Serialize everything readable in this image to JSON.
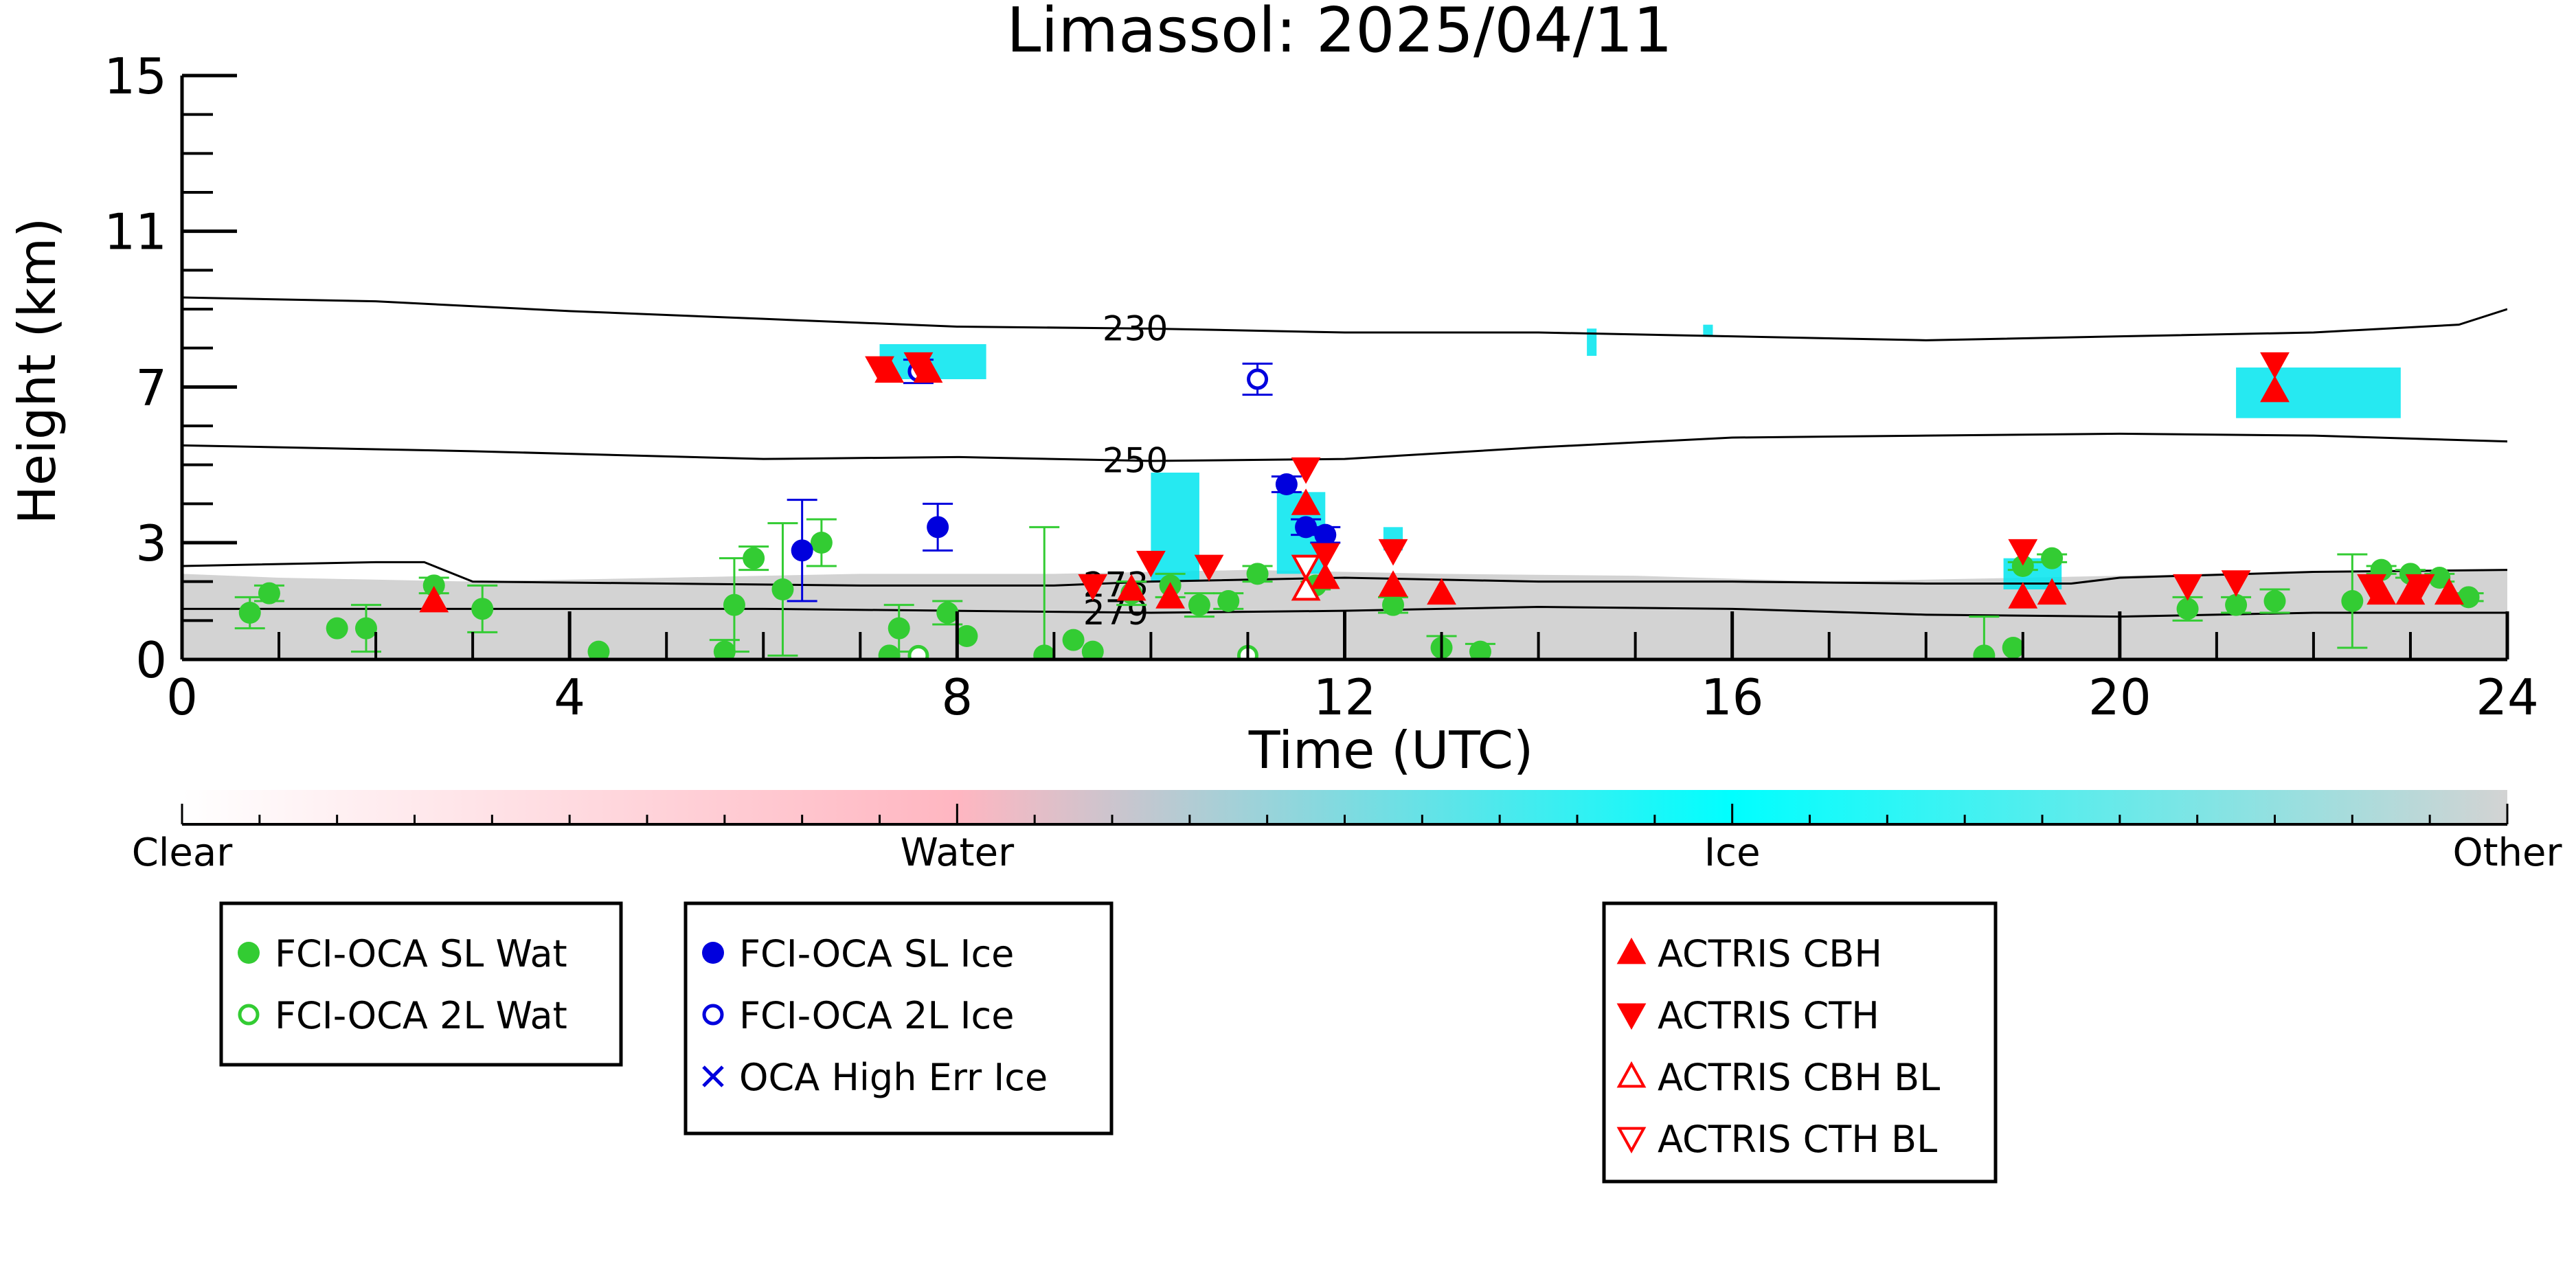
{
  "chart_data": {
    "type": "scatter",
    "title": "Limassol: 2025/04/11",
    "xlabel": "Time (UTC)",
    "ylabel": "Height (km)",
    "xlim": [
      0,
      24
    ],
    "ylim": [
      0,
      15
    ],
    "x_ticks": [
      0,
      4,
      8,
      12,
      16,
      20,
      24
    ],
    "x_tick_labels": [
      "0",
      "4",
      "8",
      "12",
      "16",
      "20",
      "24"
    ],
    "y_ticks": [
      0,
      3,
      7,
      11,
      15
    ],
    "y_tick_labels": [
      "0",
      "3",
      "7",
      "11",
      "15"
    ],
    "grid": false,
    "isotherms": [
      {
        "label": "230",
        "label_x": 9.5,
        "points": [
          [
            0,
            9.3
          ],
          [
            2,
            9.2
          ],
          [
            4,
            8.95
          ],
          [
            6,
            8.75
          ],
          [
            8,
            8.55
          ],
          [
            10,
            8.5
          ],
          [
            12,
            8.4
          ],
          [
            14,
            8.4
          ],
          [
            16,
            8.3
          ],
          [
            18,
            8.2
          ],
          [
            20,
            8.3
          ],
          [
            22,
            8.4
          ],
          [
            23.5,
            8.6
          ],
          [
            24,
            9.0
          ]
        ]
      },
      {
        "label": "250",
        "label_x": 9.5,
        "points": [
          [
            0,
            5.5
          ],
          [
            3,
            5.35
          ],
          [
            6,
            5.15
          ],
          [
            8,
            5.2
          ],
          [
            10,
            5.1
          ],
          [
            12,
            5.15
          ],
          [
            14,
            5.45
          ],
          [
            16,
            5.7
          ],
          [
            18,
            5.75
          ],
          [
            20,
            5.8
          ],
          [
            22,
            5.75
          ],
          [
            24,
            5.6
          ]
        ]
      },
      {
        "label": "273",
        "label_x": 9.3,
        "points": [
          [
            0,
            2.4
          ],
          [
            2,
            2.5
          ],
          [
            2.5,
            2.5
          ],
          [
            3,
            2.0
          ],
          [
            5,
            1.95
          ],
          [
            7,
            1.9
          ],
          [
            9,
            1.9
          ],
          [
            10,
            2.0
          ],
          [
            12,
            2.1
          ],
          [
            14,
            2.0
          ],
          [
            16,
            2.0
          ],
          [
            18,
            1.95
          ],
          [
            19.5,
            1.95
          ],
          [
            20,
            2.1
          ],
          [
            22,
            2.25
          ],
          [
            24,
            2.3
          ]
        ]
      },
      {
        "label": "279",
        "label_x": 9.3,
        "points": [
          [
            0,
            1.3
          ],
          [
            2,
            1.3
          ],
          [
            4,
            1.3
          ],
          [
            6,
            1.3
          ],
          [
            8,
            1.25
          ],
          [
            10,
            1.2
          ],
          [
            12,
            1.25
          ],
          [
            14,
            1.35
          ],
          [
            16,
            1.3
          ],
          [
            18,
            1.15
          ],
          [
            20,
            1.1
          ],
          [
            22,
            1.2
          ],
          [
            24,
            1.2
          ]
        ]
      }
    ],
    "background_layer": {
      "description_class": "Other",
      "top_profile": [
        [
          0,
          2.2
        ],
        [
          1,
          2.1
        ],
        [
          3,
          2.0
        ],
        [
          5,
          2.1
        ],
        [
          7,
          2.2
        ],
        [
          9,
          2.2
        ],
        [
          11,
          2.3
        ],
        [
          13,
          2.2
        ],
        [
          15,
          2.15
        ],
        [
          17,
          2.0
        ],
        [
          19,
          2.1
        ],
        [
          21,
          2.2
        ],
        [
          23,
          2.3
        ],
        [
          24,
          2.3
        ]
      ]
    },
    "ice_features": [
      {
        "x": 7.2,
        "x2": 8.3,
        "y": 7.2,
        "y2": 8.1
      },
      {
        "x": 10.0,
        "x2": 10.5,
        "y": 2.0,
        "y2": 4.8
      },
      {
        "x": 11.3,
        "x2": 11.8,
        "y": 2.2,
        "y2": 4.3
      },
      {
        "x": 12.4,
        "x2": 12.6,
        "y": 2.8,
        "y2": 3.4
      },
      {
        "x": 14.5,
        "x2": 14.6,
        "y": 7.8,
        "y2": 8.5
      },
      {
        "x": 15.7,
        "x2": 15.8,
        "y": 8.3,
        "y2": 8.6
      },
      {
        "x": 18.8,
        "x2": 19.4,
        "y": 1.8,
        "y2": 2.6
      },
      {
        "x": 21.2,
        "x2": 22.9,
        "y": 6.2,
        "y2": 7.5
      }
    ],
    "series": [
      {
        "name": "FCI-OCA SL Wat",
        "marker": "circle-filled",
        "color": "#33cc33",
        "points": [
          {
            "x": 0.7,
            "y": 1.2,
            "err": 0.4
          },
          {
            "x": 0.9,
            "y": 1.7,
            "err": 0.2
          },
          {
            "x": 1.6,
            "y": 0.8,
            "err": 0.0
          },
          {
            "x": 1.9,
            "y": 0.8,
            "err": 0.6
          },
          {
            "x": 2.6,
            "y": 1.9,
            "err": 0.2
          },
          {
            "x": 3.1,
            "y": 1.3,
            "err": 0.6
          },
          {
            "x": 4.3,
            "y": 0.2,
            "err": 0.0
          },
          {
            "x": 5.6,
            "y": 0.2,
            "err": 0.3
          },
          {
            "x": 5.7,
            "y": 1.4,
            "err": 1.2
          },
          {
            "x": 5.9,
            "y": 2.6,
            "err": 0.3
          },
          {
            "x": 6.2,
            "y": 1.8,
            "err": 1.7
          },
          {
            "x": 6.6,
            "y": 3.0,
            "err": 0.6
          },
          {
            "x": 7.3,
            "y": 0.1,
            "err": 0.0
          },
          {
            "x": 7.4,
            "y": 0.8,
            "err": 0.6
          },
          {
            "x": 7.9,
            "y": 1.2,
            "err": 0.3
          },
          {
            "x": 8.1,
            "y": 0.6,
            "err": 0.0
          },
          {
            "x": 8.9,
            "y": 0.1,
            "err": 3.3
          },
          {
            "x": 9.2,
            "y": 0.5,
            "err": 0.0
          },
          {
            "x": 9.4,
            "y": 0.2,
            "err": 0.0
          },
          {
            "x": 9.8,
            "y": 1.7,
            "err": 0.3
          },
          {
            "x": 10.2,
            "y": 1.9,
            "err": 0.3
          },
          {
            "x": 10.5,
            "y": 1.4,
            "err": 0.3
          },
          {
            "x": 10.8,
            "y": 1.5,
            "err": 0.2
          },
          {
            "x": 11.1,
            "y": 2.2,
            "err": 0.2
          },
          {
            "x": 11.7,
            "y": 1.9,
            "err": 0.1
          },
          {
            "x": 12.5,
            "y": 1.4,
            "err": 0.2
          },
          {
            "x": 13.0,
            "y": 0.3,
            "err": 0.3
          },
          {
            "x": 13.4,
            "y": 0.2,
            "err": 0.2
          },
          {
            "x": 18.6,
            "y": 0.1,
            "err": 1.0
          },
          {
            "x": 18.9,
            "y": 0.3,
            "err": 0.0
          },
          {
            "x": 19.0,
            "y": 2.4,
            "err": 0.1
          },
          {
            "x": 19.3,
            "y": 2.6,
            "err": 0.1
          },
          {
            "x": 20.7,
            "y": 1.3,
            "err": 0.3
          },
          {
            "x": 21.2,
            "y": 1.4,
            "err": 0.2
          },
          {
            "x": 21.6,
            "y": 1.5,
            "err": 0.3
          },
          {
            "x": 22.4,
            "y": 1.5,
            "err": 1.2
          },
          {
            "x": 22.7,
            "y": 2.3,
            "err": 0.1
          },
          {
            "x": 23.0,
            "y": 2.2,
            "err": 0.1
          },
          {
            "x": 23.3,
            "y": 2.1,
            "err": 0.1
          },
          {
            "x": 23.6,
            "y": 1.6,
            "err": 0.1
          }
        ]
      },
      {
        "name": "FCI-OCA 2L Wat",
        "marker": "circle-open",
        "color": "#33cc33",
        "points": [
          {
            "x": 7.6,
            "y": 0.1,
            "err": 0.0
          },
          {
            "x": 11.0,
            "y": 0.1,
            "err": 0.0
          }
        ]
      },
      {
        "name": "FCI-OCA SL Ice",
        "marker": "circle-filled",
        "color": "#0000dd",
        "points": [
          {
            "x": 6.4,
            "y": 2.8,
            "err": 1.3
          },
          {
            "x": 7.8,
            "y": 3.4,
            "err": 0.6
          },
          {
            "x": 11.4,
            "y": 4.5,
            "err": 0.2
          },
          {
            "x": 11.6,
            "y": 3.4,
            "err": 0.2
          },
          {
            "x": 11.8,
            "y": 3.2,
            "err": 0.2
          }
        ]
      },
      {
        "name": "FCI-OCA 2L Ice",
        "marker": "circle-open",
        "color": "#0000dd",
        "points": [
          {
            "x": 7.6,
            "y": 7.4,
            "err": 0.3
          },
          {
            "x": 11.1,
            "y": 7.2,
            "err": 0.4
          }
        ]
      },
      {
        "name": "OCA High Err Ice",
        "marker": "x",
        "color": "#0000dd",
        "points": []
      },
      {
        "name": "ACTRIS CBH",
        "marker": "triangle-up-filled",
        "color": "#ff0000",
        "points": [
          {
            "x": 2.6,
            "y": 1.5
          },
          {
            "x": 7.3,
            "y": 7.4
          },
          {
            "x": 7.7,
            "y": 7.4
          },
          {
            "x": 9.8,
            "y": 1.8
          },
          {
            "x": 10.2,
            "y": 1.6
          },
          {
            "x": 11.6,
            "y": 4.0
          },
          {
            "x": 11.8,
            "y": 2.1
          },
          {
            "x": 12.5,
            "y": 1.9
          },
          {
            "x": 13.0,
            "y": 1.7
          },
          {
            "x": 19.0,
            "y": 1.6
          },
          {
            "x": 19.3,
            "y": 1.7
          },
          {
            "x": 21.6,
            "y": 6.9
          },
          {
            "x": 22.7,
            "y": 1.7
          },
          {
            "x": 23.0,
            "y": 1.7
          },
          {
            "x": 23.4,
            "y": 1.7
          }
        ]
      },
      {
        "name": "ACTRIS CTH",
        "marker": "triangle-down-filled",
        "color": "#ff0000",
        "points": [
          {
            "x": 7.2,
            "y": 7.5
          },
          {
            "x": 7.6,
            "y": 7.6
          },
          {
            "x": 9.4,
            "y": 1.9
          },
          {
            "x": 10.0,
            "y": 2.5
          },
          {
            "x": 10.6,
            "y": 2.4
          },
          {
            "x": 11.6,
            "y": 4.9
          },
          {
            "x": 11.8,
            "y": 2.7
          },
          {
            "x": 12.5,
            "y": 2.8
          },
          {
            "x": 19.0,
            "y": 2.8
          },
          {
            "x": 20.7,
            "y": 1.9
          },
          {
            "x": 21.2,
            "y": 2.0
          },
          {
            "x": 21.6,
            "y": 7.6
          },
          {
            "x": 22.6,
            "y": 1.9
          },
          {
            "x": 23.1,
            "y": 1.9
          }
        ]
      },
      {
        "name": "ACTRIS CBH BL",
        "marker": "triangle-up-open",
        "color": "#ff0000",
        "points": [
          {
            "x": 11.6,
            "y": 1.8
          }
        ]
      },
      {
        "name": "ACTRIS CTH BL",
        "marker": "triangle-down-open",
        "color": "#ff0000",
        "points": [
          {
            "x": 11.6,
            "y": 2.4
          }
        ]
      }
    ],
    "colorbar": {
      "labels": [
        "Clear",
        "Water",
        "Ice",
        "Other"
      ],
      "stops": [
        "#ffffff",
        "#ffb6c1",
        "#00ffff",
        "#d3d3d3"
      ]
    },
    "legends": [
      {
        "entries": [
          "FCI-OCA SL Wat",
          "FCI-OCA 2L Wat"
        ]
      },
      {
        "entries": [
          "FCI-OCA SL Ice",
          "FCI-OCA 2L Ice",
          "OCA High Err Ice"
        ]
      },
      {
        "entries": [
          "ACTRIS CBH",
          "ACTRIS CTH",
          "ACTRIS CBH BL",
          "ACTRIS CTH BL"
        ]
      }
    ]
  }
}
